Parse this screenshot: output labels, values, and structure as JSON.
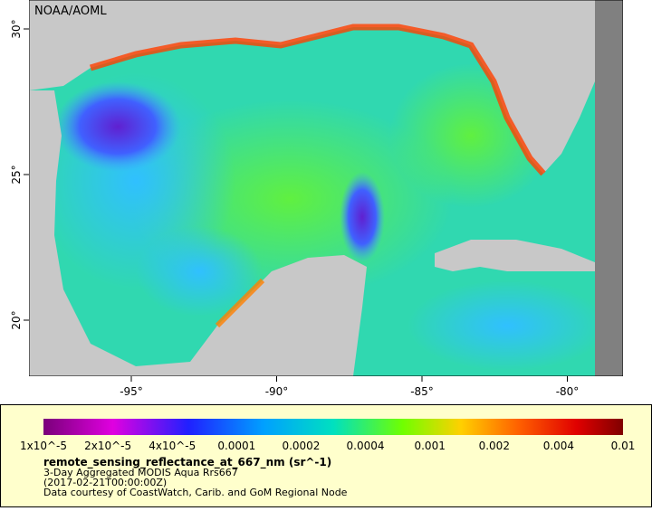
{
  "map": {
    "credit": "NOAA/AOML",
    "lon_ticks": [
      {
        "value": -95,
        "label": "-95°"
      },
      {
        "value": -90,
        "label": "-90°"
      },
      {
        "value": -85,
        "label": "-85°"
      },
      {
        "value": -80,
        "label": "-80°"
      }
    ],
    "lat_ticks": [
      {
        "value": 20,
        "label": "20°"
      },
      {
        "value": 25,
        "label": "25°"
      },
      {
        "value": 30,
        "label": "30°"
      }
    ]
  },
  "legend": {
    "colorbar_labels": [
      "1x10^-5",
      "2x10^-5",
      "4x10^-5",
      "0.0001",
      "0.0002",
      "0.0004",
      "0.001",
      "0.002",
      "0.004",
      "0.01"
    ],
    "variable": "remote_sensing_reflectance_at_667_nm (sr^-1)",
    "lines": [
      "3-Day Aggregated MODIS Aqua Rrs667",
      "(2017-02-21T00:00:00Z)",
      "Data courtesy of CoastWatch, Carib. and GoM Regional Node"
    ]
  }
}
